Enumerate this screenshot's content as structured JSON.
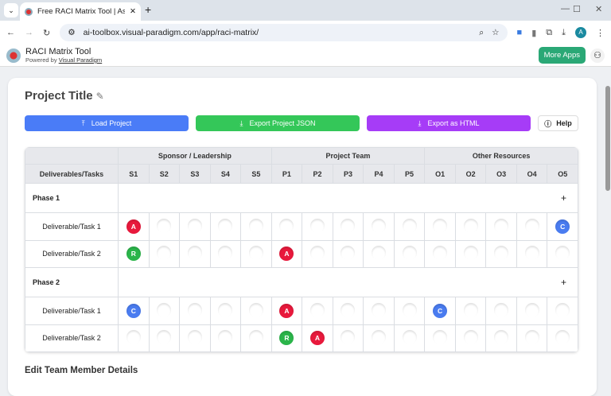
{
  "browser": {
    "tab_title": "Free RACI Matrix Tool | Assign R",
    "url": "ai-toolbox.visual-paradigm.com/app/raci-matrix/",
    "profile_initial": "A"
  },
  "app": {
    "title": "RACI Matrix Tool",
    "powered_prefix": "Powered by ",
    "powered_link": "Visual Paradigm",
    "more_apps": "More Apps"
  },
  "project": {
    "title": "Project Title"
  },
  "toolbar": {
    "load": "Load Project",
    "export_json": "Export Project JSON",
    "export_html": "Export as HTML",
    "help": "Help"
  },
  "colors": {
    "load": "#4a7cf7",
    "export_json": "#34c759",
    "export_html": "#a63cf7",
    "A": "#e8193c",
    "R": "#2bb54a",
    "C": "#4a7cf0"
  },
  "matrix": {
    "first_header": "Deliverables/Tasks",
    "groups": [
      {
        "label": "Sponsor / Leadership",
        "cols": [
          "S1",
          "S2",
          "S3",
          "S4",
          "S5"
        ]
      },
      {
        "label": "Project Team",
        "cols": [
          "P1",
          "P2",
          "P3",
          "P4",
          "P5"
        ]
      },
      {
        "label": "Other Resources",
        "cols": [
          "O1",
          "O2",
          "O3",
          "O4",
          "O5"
        ]
      }
    ],
    "phases": [
      {
        "label": "Phase 1",
        "add": "+",
        "tasks": [
          {
            "label": "Deliverable/Task 1",
            "cells": {
              "S1": "A",
              "O5": "C"
            }
          },
          {
            "label": "Deliverable/Task 2",
            "cells": {
              "S1": "R",
              "P1": "A"
            }
          }
        ]
      },
      {
        "label": "Phase 2",
        "add": "+",
        "tasks": [
          {
            "label": "Deliverable/Task 1",
            "cells": {
              "S1": "C",
              "P1": "A",
              "O1": "C"
            }
          },
          {
            "label": "Deliverable/Task 2",
            "cells": {
              "P1": "R",
              "P2": "A"
            }
          }
        ]
      }
    ]
  },
  "section": {
    "edit_team": "Edit Team Member Details"
  }
}
